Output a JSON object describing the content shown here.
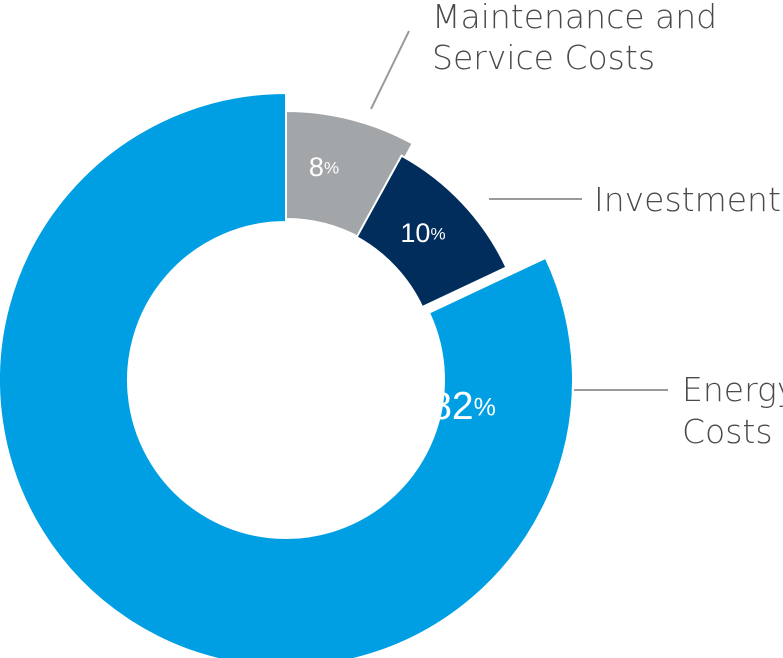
{
  "chart_data": {
    "type": "pie",
    "variant": "donut",
    "categories": [
      "Energy Costs",
      "Maintenance and Service Costs",
      "Investment"
    ],
    "values": [
      82,
      8,
      10
    ],
    "value_suffix": "%",
    "colors": {
      "Energy Costs": "#009fe3",
      "Maintenance and Service Costs": "#a3a6a8",
      "Investment": "#002d5c"
    },
    "slices": [
      {
        "label_lines": [
          "Maintenance and",
          "Service Costs"
        ],
        "value": 8,
        "value_text": "8",
        "color": "#a3a6a8"
      },
      {
        "label_lines": [
          "Investment"
        ],
        "value": 10,
        "value_text": "10",
        "color": "#002d5c"
      },
      {
        "label_lines": [
          "Energy",
          "Costs"
        ],
        "value": 82,
        "value_text": "82",
        "color": "#009fe3"
      }
    ],
    "legend": "callout labels with leader lines",
    "title": ""
  }
}
